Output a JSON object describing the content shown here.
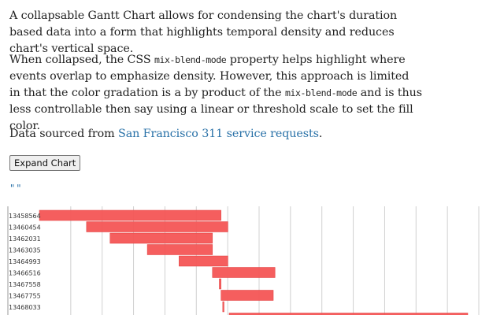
{
  "intro": {
    "paragraph1": "A collapsable Gantt Chart allows for condensing the chart's duration based data into a form that highlights temporal density and reduces chart's vertical space.",
    "p2_before": "When collapsed, the CSS ",
    "p2_code1": "mix-blend-mode",
    "p2_middle": " property helps highlight where events overlap to emphasize density. However, this approach is limited in that the color gradation is a by product of the ",
    "p2_code2": "mix-blend-mode",
    "p2_after": " and is thus less controllable then say using a linear or threshold scale to set the fill color.",
    "p3_before": "Data sourced from ",
    "p3_link": "San Francisco 311 service requests",
    "p3_after": "."
  },
  "expand_button_label": "Expand Chart",
  "quote_text": "\"\"",
  "colors": {
    "bar": "#f45555",
    "link": "#2a72a8",
    "grid": "#d0d0d0"
  },
  "chart_data": {
    "type": "gantt",
    "rows": [
      {
        "label": "13458564",
        "start": 0.0,
        "end": 0.424
      },
      {
        "label": "13460454",
        "start": 0.11,
        "end": 0.44
      },
      {
        "label": "13462031",
        "start": 0.165,
        "end": 0.404
      },
      {
        "label": "13463035",
        "start": 0.252,
        "end": 0.404
      },
      {
        "label": "13464993",
        "start": 0.326,
        "end": 0.44
      },
      {
        "label": "13466516",
        "start": 0.404,
        "end": 0.55
      },
      {
        "label": "13467558",
        "start": 0.42,
        "end": 0.424
      },
      {
        "label": "13467755",
        "start": 0.424,
        "end": 0.546
      },
      {
        "label": "13468033",
        "start": 0.428,
        "end": 0.431
      },
      {
        "label": "",
        "start": 0.443,
        "end": 1.0
      }
    ],
    "grid": true
  }
}
